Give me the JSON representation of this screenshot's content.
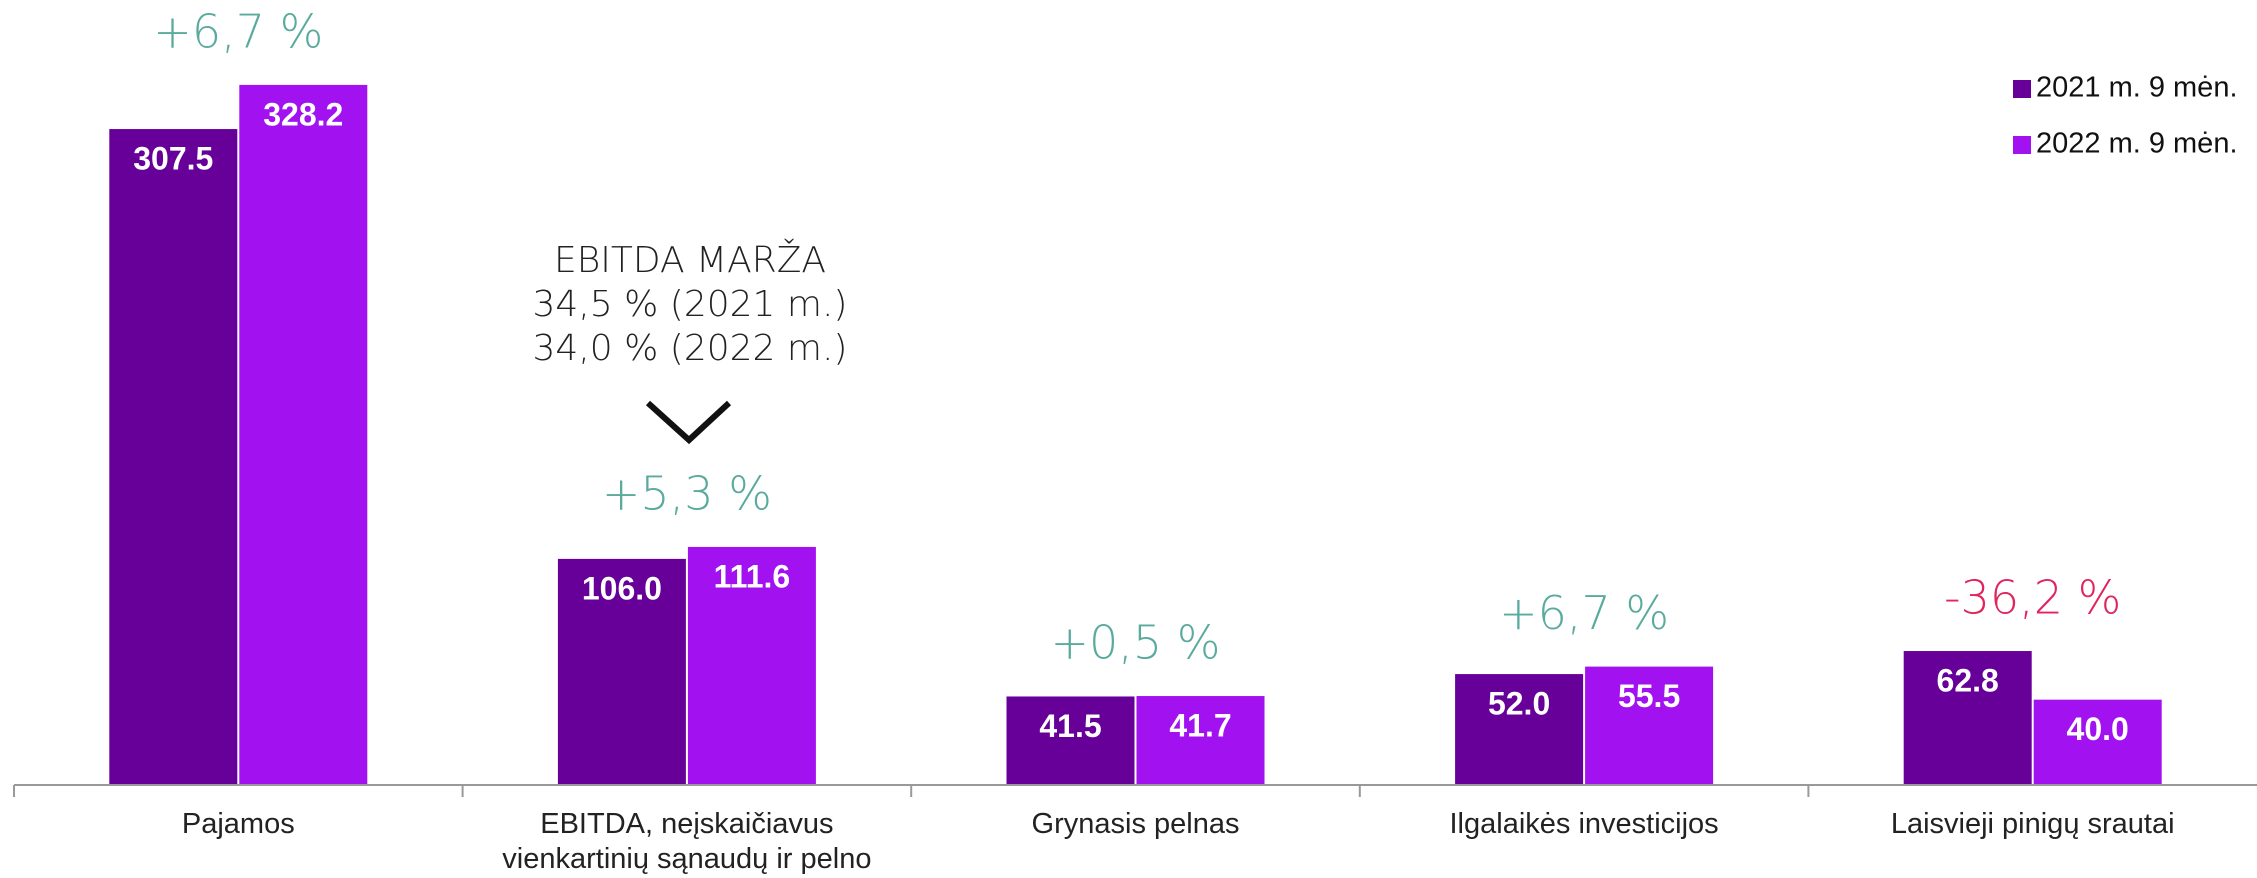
{
  "chart_data": {
    "type": "bar",
    "categories": [
      "Pajamos",
      "EBITDA, neįskaičiavus\nvienkartinių sąnaudų ir pelno",
      "Grynasis pelnas",
      "Ilgalaikės investicijos",
      "Laisvieji pinigų srautai"
    ],
    "series": [
      {
        "name": "2021 m. 9 mėn.",
        "color": "#660099",
        "values": [
          307.5,
          106.0,
          41.5,
          52.0,
          62.8
        ],
        "value_labels": [
          "307.5",
          "106.0",
          "41.5",
          "52.0",
          "62.8"
        ]
      },
      {
        "name": "2022 m. 9 mėn.",
        "color": "#a211f0",
        "values": [
          328.2,
          111.6,
          41.7,
          55.5,
          40.0
        ],
        "value_labels": [
          "328.2",
          "111.6",
          "41.7",
          "55.5",
          "40.0"
        ]
      }
    ],
    "change_labels": [
      {
        "text": "+6,7 %",
        "color": "#5aaa9e"
      },
      {
        "text": "+5,3 %",
        "color": "#5aaa9e"
      },
      {
        "text": "+0,5 %",
        "color": "#5aaa9e"
      },
      {
        "text": "+6,7 %",
        "color": "#5aaa9e"
      },
      {
        "text": "-36,2 %",
        "color": "#e0245e"
      }
    ],
    "annotation": [
      "EBITDA MARŽA",
      "34,5 % (2021 m.)",
      "34,0 % (2022 m.)"
    ],
    "ylim": [
      0,
      368
    ],
    "legend": "top-right"
  }
}
